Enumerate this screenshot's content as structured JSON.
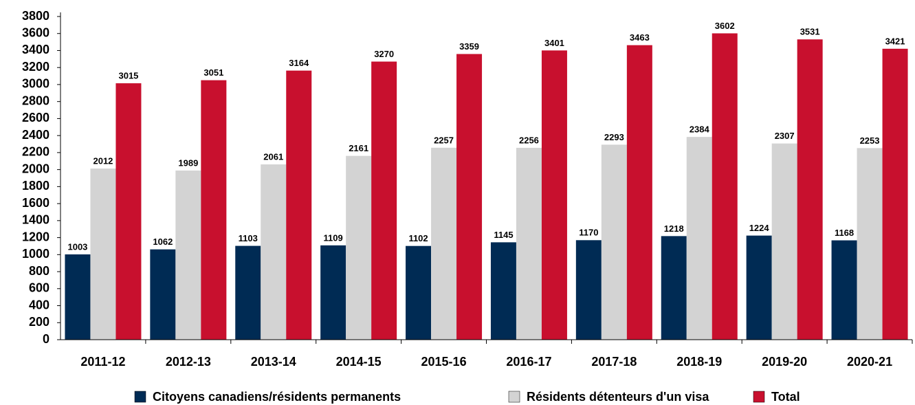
{
  "chart_data": {
    "type": "bar",
    "categories": [
      "2011-12",
      "2012-13",
      "2013-14",
      "2014-15",
      "2015-16",
      "2016-17",
      "2017-18",
      "2018-19",
      "2019-20",
      "2020-21"
    ],
    "series": [
      {
        "name": "Citoyens canadiens/résidents permanents",
        "color": "#002b54",
        "values": [
          1003,
          1062,
          1103,
          1109,
          1102,
          1145,
          1170,
          1218,
          1224,
          1168
        ]
      },
      {
        "name": "Résidents détenteurs d'un visa",
        "color": "#d3d3d3",
        "values": [
          2012,
          1989,
          2061,
          2161,
          2257,
          2256,
          2293,
          2384,
          2307,
          2253
        ]
      },
      {
        "name": "Total",
        "color": "#c8102e",
        "values": [
          3015,
          3051,
          3164,
          3270,
          3359,
          3401,
          3463,
          3602,
          3531,
          3421
        ]
      }
    ],
    "ylim": [
      0,
      3800
    ],
    "yticks": [
      0,
      200,
      400,
      600,
      800,
      1000,
      1200,
      1400,
      1600,
      1800,
      2000,
      2200,
      2400,
      2600,
      2800,
      3000,
      3200,
      3400,
      3600,
      3800
    ],
    "grid": false,
    "legend": "bottom"
  }
}
